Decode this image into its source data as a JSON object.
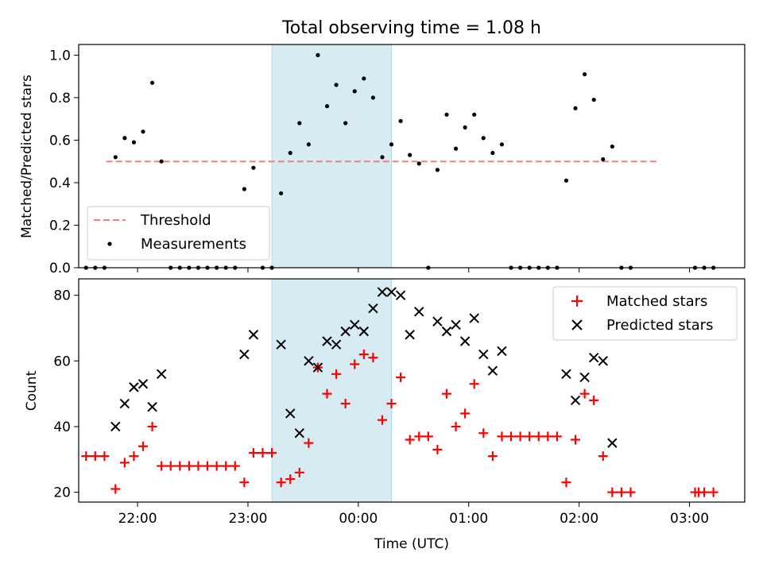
{
  "chart_data": [
    {
      "type": "scatter",
      "title": "Total observing time = 1.08 h",
      "xlabel": "",
      "ylabel": "Matched/Predicted stars",
      "x_axis_type": "time",
      "xlim": [
        "21:28",
        "03:30"
      ],
      "ylim": [
        0,
        1.05
      ],
      "yticks": [
        0.0,
        0.2,
        0.4,
        0.6,
        0.8,
        1.0
      ],
      "ytick_labels": [
        "0.0",
        "0.2",
        "0.4",
        "0.6",
        "0.8",
        "1.0"
      ],
      "shaded_span": [
        "23:13",
        "00:18"
      ],
      "shaded_color": "#add8e6",
      "legend_position": "lower-left",
      "threshold": {
        "name": "Threshold",
        "value": 0.5,
        "x_range": [
          "21:43",
          "02:43"
        ],
        "color": "#f08080",
        "style": "dashed"
      },
      "series": [
        {
          "name": "Measurements",
          "color": "#000000",
          "marker": "dot",
          "points": [
            [
              "21:32",
              0.0
            ],
            [
              "21:37",
              0.0
            ],
            [
              "21:42",
              0.0
            ],
            [
              "21:48",
              0.52
            ],
            [
              "21:53",
              0.61
            ],
            [
              "21:58",
              0.59
            ],
            [
              "22:03",
              0.64
            ],
            [
              "22:08",
              0.87
            ],
            [
              "22:13",
              0.5
            ],
            [
              "22:18",
              0.0
            ],
            [
              "22:23",
              0.0
            ],
            [
              "22:28",
              0.0
            ],
            [
              "22:33",
              0.0
            ],
            [
              "22:38",
              0.0
            ],
            [
              "22:43",
              0.0
            ],
            [
              "22:48",
              0.0
            ],
            [
              "22:53",
              0.0
            ],
            [
              "22:58",
              0.37
            ],
            [
              "23:03",
              0.47
            ],
            [
              "23:08",
              0.0
            ],
            [
              "23:13",
              0.0
            ],
            [
              "23:18",
              0.35
            ],
            [
              "23:23",
              0.54
            ],
            [
              "23:28",
              0.68
            ],
            [
              "23:33",
              0.58
            ],
            [
              "23:38",
              1.0
            ],
            [
              "23:43",
              0.76
            ],
            [
              "23:48",
              0.86
            ],
            [
              "23:53",
              0.68
            ],
            [
              "23:58",
              0.83
            ],
            [
              "00:03",
              0.89
            ],
            [
              "00:08",
              0.8
            ],
            [
              "00:13",
              0.52
            ],
            [
              "00:18",
              0.58
            ],
            [
              "00:23",
              0.69
            ],
            [
              "00:28",
              0.53
            ],
            [
              "00:33",
              0.49
            ],
            [
              "00:38",
              0.0
            ],
            [
              "00:43",
              0.46
            ],
            [
              "00:48",
              0.72
            ],
            [
              "00:53",
              0.56
            ],
            [
              "00:58",
              0.66
            ],
            [
              "01:03",
              0.72
            ],
            [
              "01:08",
              0.61
            ],
            [
              "01:13",
              0.54
            ],
            [
              "01:18",
              0.58
            ],
            [
              "01:23",
              0.0
            ],
            [
              "01:28",
              0.0
            ],
            [
              "01:33",
              0.0
            ],
            [
              "01:38",
              0.0
            ],
            [
              "01:43",
              0.0
            ],
            [
              "01:48",
              0.0
            ],
            [
              "01:53",
              0.41
            ],
            [
              "01:58",
              0.75
            ],
            [
              "02:03",
              0.91
            ],
            [
              "02:08",
              0.79
            ],
            [
              "02:13",
              0.51
            ],
            [
              "02:18",
              0.57
            ],
            [
              "02:23",
              0.0
            ],
            [
              "02:28",
              0.0
            ],
            [
              "03:03",
              0.0
            ],
            [
              "03:08",
              0.0
            ],
            [
              "03:13",
              0.0
            ]
          ]
        }
      ]
    },
    {
      "type": "scatter",
      "title": "",
      "xlabel": "Time (UTC)",
      "ylabel": "Count",
      "x_axis_type": "time",
      "xlim": [
        "21:28",
        "03:30"
      ],
      "ylim": [
        17,
        85
      ],
      "yticks": [
        20,
        40,
        60,
        80
      ],
      "ytick_labels": [
        "20",
        "40",
        "60",
        "80"
      ],
      "xticks": [
        "22:00",
        "23:00",
        "00:00",
        "01:00",
        "02:00",
        "03:00"
      ],
      "xtick_labels": [
        "22:00",
        "23:00",
        "00:00",
        "01:00",
        "02:00",
        "03:00"
      ],
      "shaded_span": [
        "23:13",
        "00:18"
      ],
      "shaded_color": "#add8e6",
      "legend_position": "top-right",
      "series": [
        {
          "name": "Matched stars",
          "color": "#ff0000",
          "marker": "plus",
          "points": [
            [
              "21:32",
              31
            ],
            [
              "21:37",
              31
            ],
            [
              "21:42",
              31
            ],
            [
              "21:48",
              21
            ],
            [
              "21:53",
              29
            ],
            [
              "21:58",
              31
            ],
            [
              "22:03",
              34
            ],
            [
              "22:08",
              40
            ],
            [
              "22:13",
              28
            ],
            [
              "22:18",
              28
            ],
            [
              "22:23",
              28
            ],
            [
              "22:28",
              28
            ],
            [
              "22:33",
              28
            ],
            [
              "22:38",
              28
            ],
            [
              "22:43",
              28
            ],
            [
              "22:48",
              28
            ],
            [
              "22:53",
              28
            ],
            [
              "22:58",
              23
            ],
            [
              "23:03",
              32
            ],
            [
              "23:08",
              32
            ],
            [
              "23:13",
              32
            ],
            [
              "23:18",
              23
            ],
            [
              "23:23",
              24
            ],
            [
              "23:28",
              26
            ],
            [
              "23:33",
              35
            ],
            [
              "23:38",
              58
            ],
            [
              "23:43",
              50
            ],
            [
              "23:48",
              56
            ],
            [
              "23:53",
              47
            ],
            [
              "23:58",
              59
            ],
            [
              "00:03",
              62
            ],
            [
              "00:08",
              61
            ],
            [
              "00:13",
              42
            ],
            [
              "00:18",
              47
            ],
            [
              "00:23",
              55
            ],
            [
              "00:28",
              36
            ],
            [
              "00:33",
              37
            ],
            [
              "00:38",
              37
            ],
            [
              "00:43",
              33
            ],
            [
              "00:48",
              50
            ],
            [
              "00:53",
              40
            ],
            [
              "00:58",
              44
            ],
            [
              "01:03",
              53
            ],
            [
              "01:08",
              38
            ],
            [
              "01:13",
              31
            ],
            [
              "01:18",
              37
            ],
            [
              "01:23",
              37
            ],
            [
              "01:28",
              37
            ],
            [
              "01:33",
              37
            ],
            [
              "01:38",
              37
            ],
            [
              "01:43",
              37
            ],
            [
              "01:48",
              37
            ],
            [
              "01:53",
              23
            ],
            [
              "01:58",
              36
            ],
            [
              "02:03",
              50
            ],
            [
              "02:08",
              48
            ],
            [
              "02:13",
              31
            ],
            [
              "02:18",
              20
            ],
            [
              "02:23",
              20
            ],
            [
              "02:28",
              20
            ],
            [
              "03:03",
              20
            ],
            [
              "03:05",
              20
            ],
            [
              "03:08",
              20
            ],
            [
              "03:13",
              20
            ]
          ]
        },
        {
          "name": "Predicted stars",
          "color": "#000000",
          "marker": "x",
          "points": [
            [
              "21:48",
              40
            ],
            [
              "21:53",
              47
            ],
            [
              "21:58",
              52
            ],
            [
              "22:03",
              53
            ],
            [
              "22:08",
              46
            ],
            [
              "22:13",
              56
            ],
            [
              "22:58",
              62
            ],
            [
              "23:03",
              68
            ],
            [
              "23:18",
              65
            ],
            [
              "23:23",
              44
            ],
            [
              "23:28",
              38
            ],
            [
              "23:33",
              60
            ],
            [
              "23:38",
              58
            ],
            [
              "23:43",
              66
            ],
            [
              "23:48",
              65
            ],
            [
              "23:53",
              69
            ],
            [
              "23:58",
              71
            ],
            [
              "00:03",
              69
            ],
            [
              "00:08",
              76
            ],
            [
              "00:13",
              81
            ],
            [
              "00:18",
              81
            ],
            [
              "00:23",
              80
            ],
            [
              "00:28",
              68
            ],
            [
              "00:33",
              75
            ],
            [
              "00:43",
              72
            ],
            [
              "00:48",
              69
            ],
            [
              "00:53",
              71
            ],
            [
              "00:58",
              66
            ],
            [
              "01:03",
              73
            ],
            [
              "01:08",
              62
            ],
            [
              "01:13",
              57
            ],
            [
              "01:18",
              63
            ],
            [
              "01:53",
              56
            ],
            [
              "01:58",
              48
            ],
            [
              "02:03",
              55
            ],
            [
              "02:08",
              61
            ],
            [
              "02:13",
              60
            ],
            [
              "02:18",
              35
            ]
          ]
        }
      ]
    }
  ]
}
